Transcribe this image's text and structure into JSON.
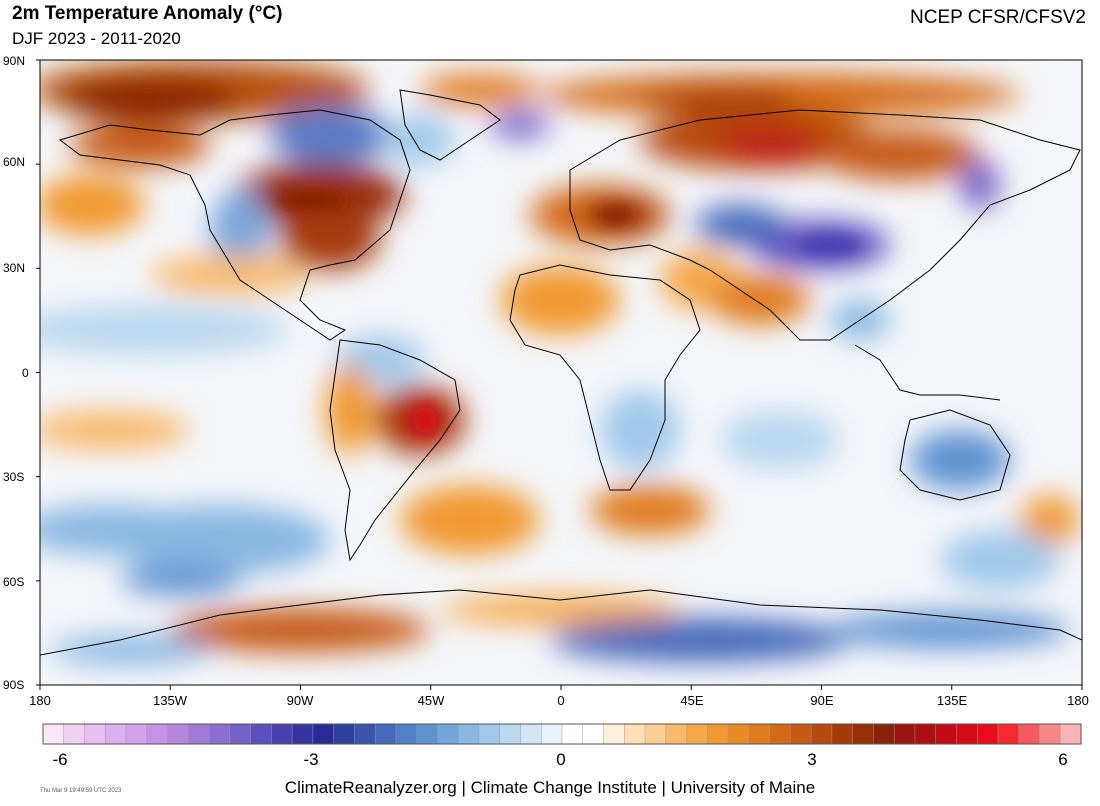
{
  "header": {
    "title": "2m Temperature Anomaly (°C)",
    "subtitle": "DJF 2023 - 2011-2020",
    "source": "NCEP CFSR/CFSV2"
  },
  "map": {
    "lat_labels": [
      "90N",
      "60N",
      "30N",
      "0",
      "30S",
      "60S",
      "90S"
    ],
    "lon_labels": [
      "180",
      "135W",
      "90W",
      "45W",
      "0",
      "45E",
      "90E",
      "135E",
      "180"
    ]
  },
  "colorbar": {
    "labels": [
      "-6",
      "-3",
      "0",
      "3",
      "6"
    ],
    "colors": [
      "#f9e6f9",
      "#f0d0f2",
      "#e6bff0",
      "#dcb0ee",
      "#d2a2ea",
      "#c493e6",
      "#b586e0",
      "#a07ad8",
      "#8b6ecf",
      "#7562c6",
      "#5c4fbe",
      "#4a3fb0",
      "#3535a0",
      "#262b96",
      "#2e3f9c",
      "#3a54ab",
      "#4468ba",
      "#5080c6",
      "#5f93d0",
      "#72a6da",
      "#88b7e2",
      "#a0c8ea",
      "#bad8f0",
      "#d3e6f6",
      "#e8f2fa",
      "#ffffff",
      "#ffffff",
      "#fff0dc",
      "#fde0b8",
      "#fccf94",
      "#f8b96c",
      "#f5a848",
      "#f19a30",
      "#ea8a22",
      "#e07a1c",
      "#d46a16",
      "#c65a12",
      "#b64a0e",
      "#a63b0a",
      "#982e08",
      "#8a2206",
      "#9a1410",
      "#ae0d12",
      "#c20a14",
      "#d60a16",
      "#ea0c18",
      "#f52a30",
      "#f65a5e",
      "#f8878a",
      "#fab4b6"
    ]
  },
  "footer": {
    "timestamp": "Thu Mar  9 19:49:59 UTC 2023",
    "credits": "ClimateReanalyzer.org | Climate Change Institute | University of Maine"
  }
}
